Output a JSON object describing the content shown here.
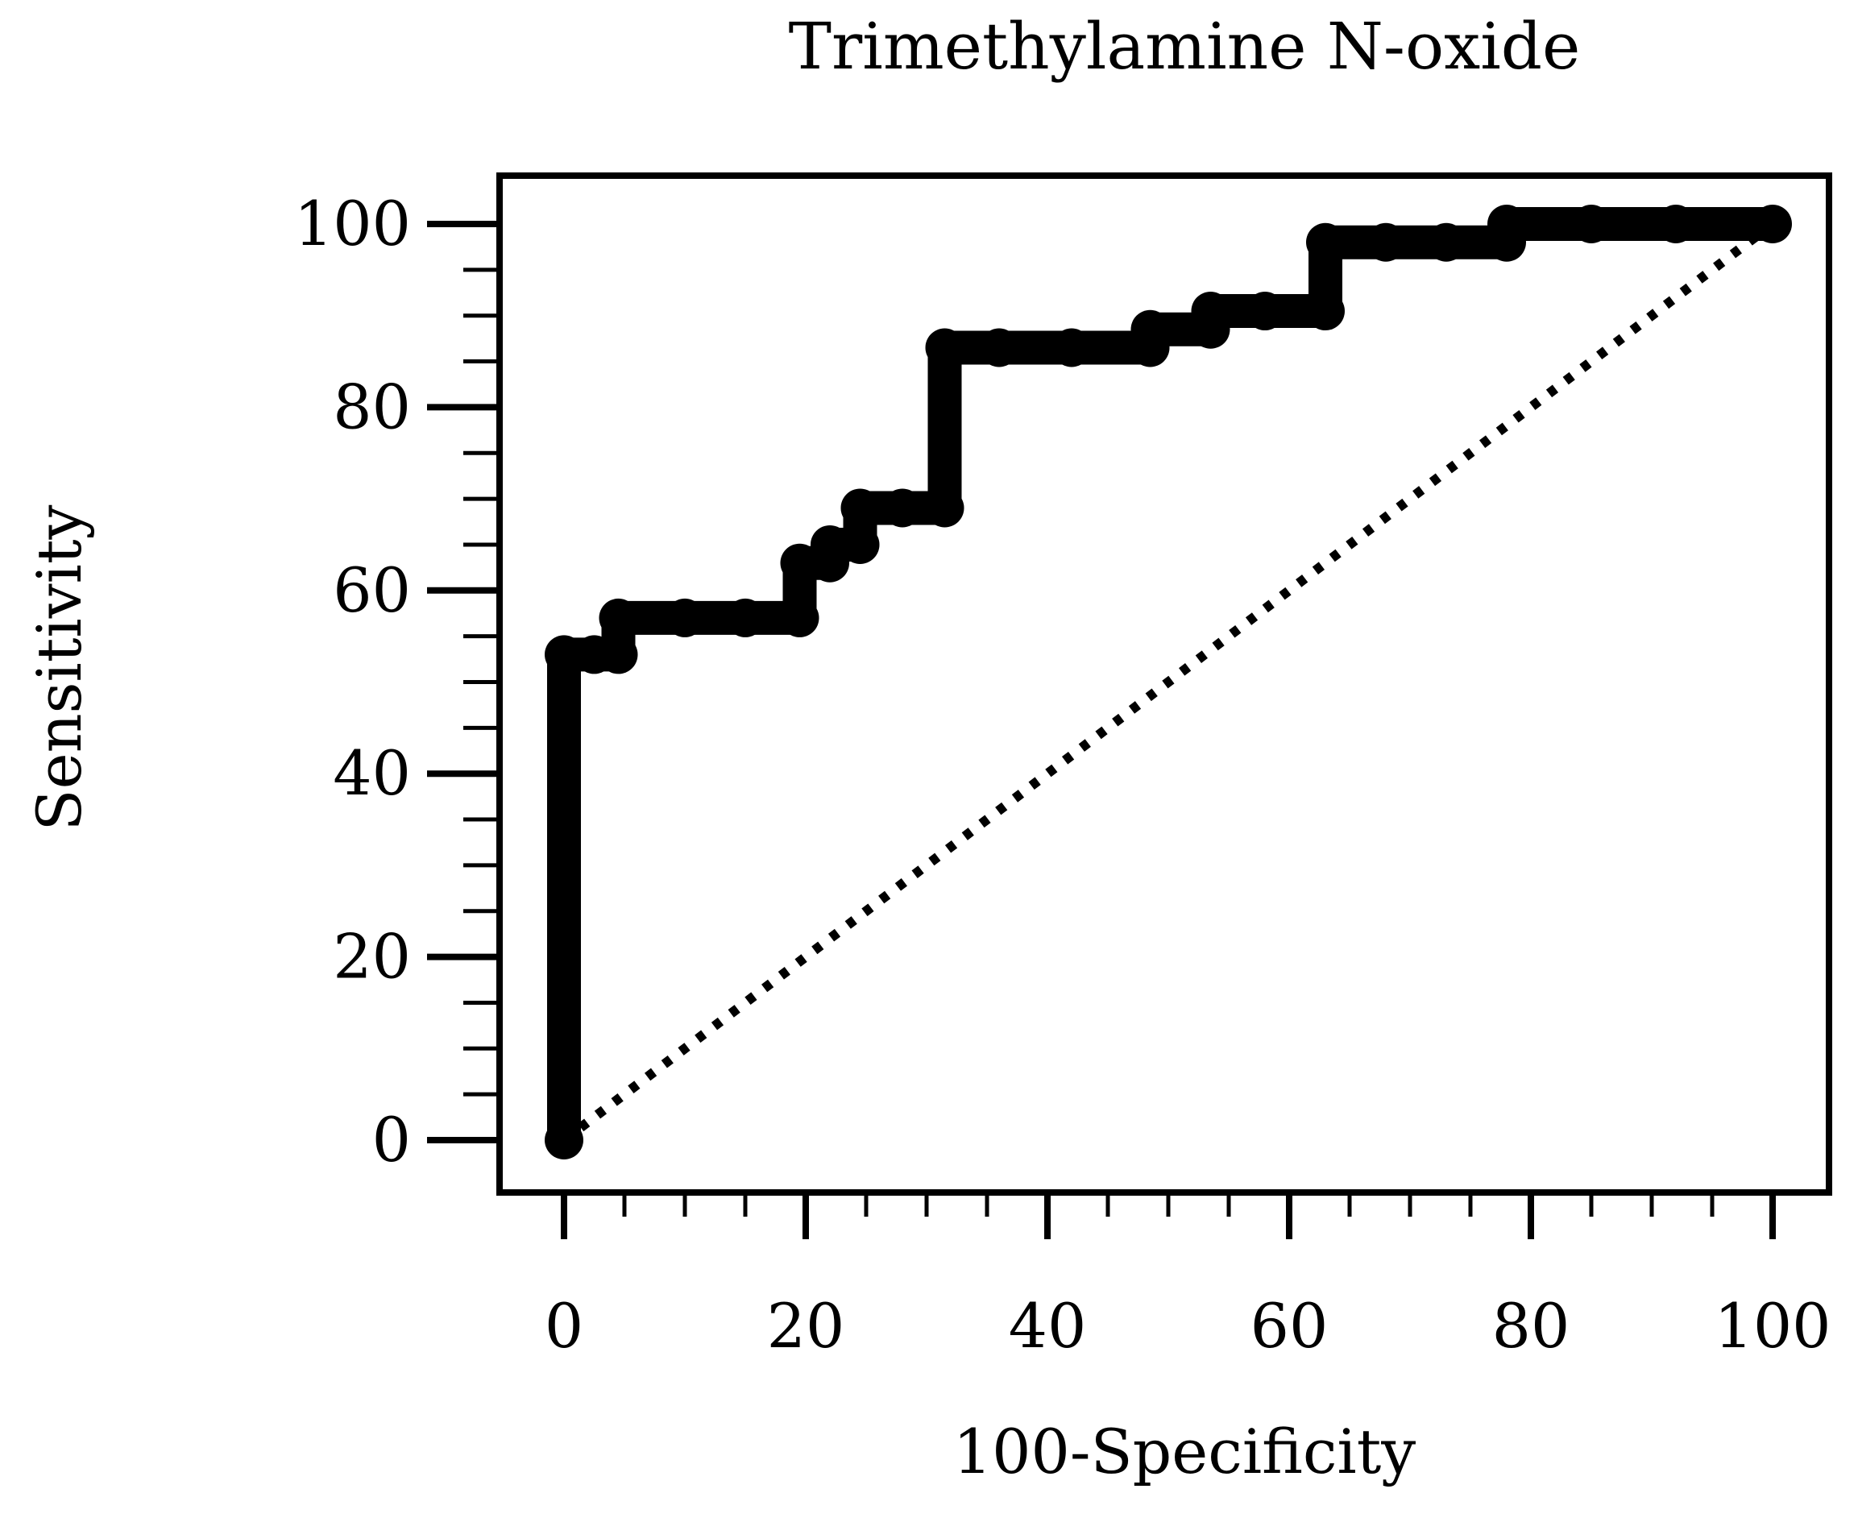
{
  "chart_data": {
    "type": "line",
    "title": "Trimethylamine N-oxide",
    "xlabel": "100-Specificity",
    "ylabel": "Sensitivity",
    "xlim": [
      0,
      100
    ],
    "ylim": [
      0,
      100
    ],
    "x_ticks": [
      0,
      20,
      40,
      60,
      80,
      100
    ],
    "y_ticks": [
      0,
      20,
      40,
      60,
      80,
      100
    ],
    "grid": false,
    "series": [
      {
        "style": "thick-black-points",
        "color": "#000000",
        "points": [
          [
            0,
            0
          ],
          [
            0,
            53
          ],
          [
            2.5,
            53
          ],
          [
            4.5,
            53
          ],
          [
            4.5,
            57
          ],
          [
            10,
            57
          ],
          [
            15,
            57
          ],
          [
            19.5,
            57
          ],
          [
            19.5,
            63
          ],
          [
            22,
            63
          ],
          [
            22,
            65
          ],
          [
            24.5,
            65
          ],
          [
            24.5,
            69
          ],
          [
            28,
            69
          ],
          [
            31.5,
            69
          ],
          [
            31.5,
            86.5
          ],
          [
            36,
            86.5
          ],
          [
            42,
            86.5
          ],
          [
            48.5,
            86.5
          ],
          [
            48.5,
            88.5
          ],
          [
            53.5,
            88.5
          ],
          [
            53.5,
            90.5
          ],
          [
            58,
            90.5
          ],
          [
            63,
            90.5
          ],
          [
            63,
            98
          ],
          [
            68,
            98
          ],
          [
            73,
            98
          ],
          [
            78,
            98
          ],
          [
            78,
            100
          ],
          [
            85,
            100
          ],
          [
            92,
            100
          ],
          [
            100,
            100
          ]
        ]
      },
      {
        "style": "dotted-reference",
        "color": "#000000",
        "points": [
          [
            0,
            0
          ],
          [
            100,
            100
          ]
        ]
      }
    ]
  }
}
